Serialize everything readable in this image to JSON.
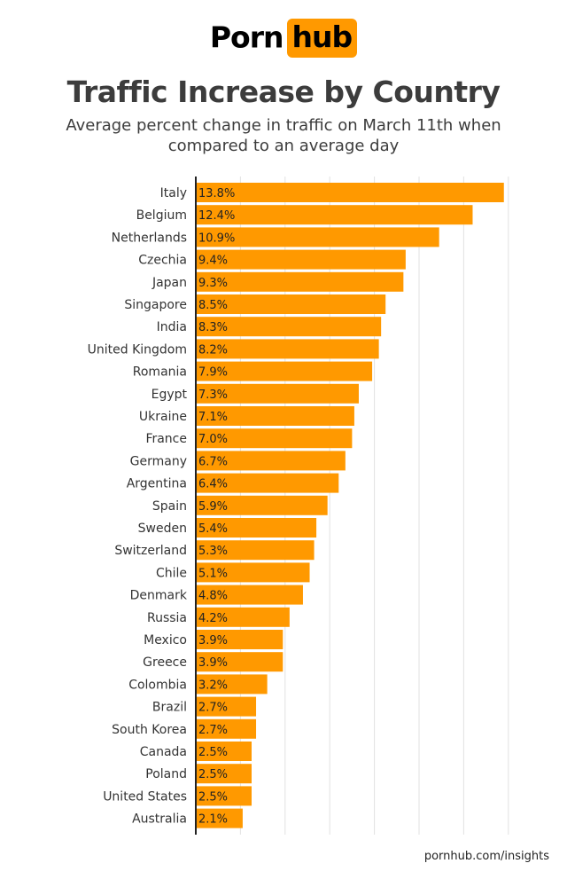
{
  "brand": {
    "logo_left": "Porn",
    "logo_right": "hub",
    "accent_color": "#ff9900"
  },
  "title": "Traffic Increase by Country",
  "subtitle": "Average percent change in traffic on March 11th when compared to an average day",
  "footer": "pornhub.com/insights",
  "chart_data": {
    "type": "bar",
    "orientation": "horizontal",
    "title": "Traffic Increase by Country",
    "subtitle": "Average percent change in traffic on March 11th when compared to an average day",
    "xlabel": "",
    "ylabel": "",
    "xlim": [
      0,
      14
    ],
    "grid": true,
    "bar_color": "#ff9900",
    "categories": [
      "Italy",
      "Belgium",
      "Netherlands",
      "Czechia",
      "Japan",
      "Singapore",
      "India",
      "United Kingdom",
      "Romania",
      "Egypt",
      "Ukraine",
      "France",
      "Germany",
      "Argentina",
      "Spain",
      "Sweden",
      "Switzerland",
      "Chile",
      "Denmark",
      "Russia",
      "Mexico",
      "Greece",
      "Colombia",
      "Brazil",
      "South Korea",
      "Canada",
      "Poland",
      "United States",
      "Australia"
    ],
    "values": [
      13.8,
      12.4,
      10.9,
      9.4,
      9.3,
      8.5,
      8.3,
      8.2,
      7.9,
      7.3,
      7.1,
      7.0,
      6.7,
      6.4,
      5.9,
      5.4,
      5.3,
      5.1,
      4.8,
      4.2,
      3.9,
      3.9,
      3.2,
      2.7,
      2.7,
      2.5,
      2.5,
      2.5,
      2.1
    ],
    "labels": [
      "13.8%",
      "12.4%",
      "10.9%",
      "9.4%",
      "9.3%",
      "8.5%",
      "8.3%",
      "8.2%",
      "7.9%",
      "7.3%",
      "7.1%",
      "7.0%",
      "6.7%",
      "6.4%",
      "5.9%",
      "5.4%",
      "5.3%",
      "5.1%",
      "4.8%",
      "4.2%",
      "3.9%",
      "3.9%",
      "3.2%",
      "2.7%",
      "2.7%",
      "2.5%",
      "2.5%",
      "2.5%",
      "2.1%"
    ]
  }
}
